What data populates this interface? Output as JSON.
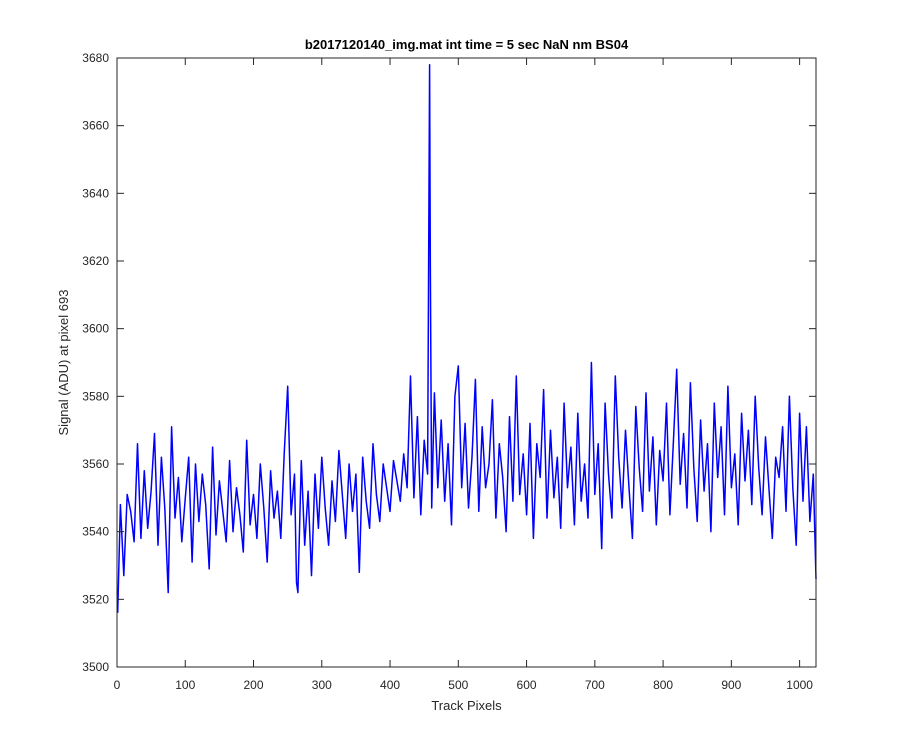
{
  "chart_data": {
    "type": "line",
    "title": "b2017120140_img.mat int time = 5 sec  NaN nm BS04",
    "xlabel": "Track Pixels",
    "ylabel": "Signal (ADU) at pixel 693",
    "xlim": [
      0,
      1024
    ],
    "ylim": [
      3500,
      3680
    ],
    "xticks": [
      0,
      100,
      200,
      300,
      400,
      500,
      600,
      700,
      800,
      900,
      1000
    ],
    "yticks": [
      3500,
      3520,
      3540,
      3560,
      3580,
      3600,
      3620,
      3640,
      3660,
      3680
    ],
    "grid": false,
    "series": [
      {
        "color": "#0000ff",
        "x": [
          1,
          5,
          10,
          15,
          20,
          25,
          30,
          35,
          40,
          45,
          50,
          55,
          60,
          65,
          70,
          75,
          80,
          85,
          90,
          95,
          100,
          105,
          110,
          115,
          120,
          125,
          130,
          135,
          140,
          145,
          150,
          155,
          160,
          165,
          170,
          175,
          180,
          185,
          190,
          195,
          200,
          205,
          210,
          215,
          220,
          225,
          230,
          235,
          240,
          245,
          250,
          255,
          260,
          263,
          265,
          270,
          275,
          280,
          285,
          290,
          295,
          300,
          305,
          310,
          315,
          320,
          325,
          330,
          335,
          340,
          345,
          350,
          355,
          360,
          365,
          370,
          375,
          380,
          385,
          390,
          395,
          400,
          405,
          410,
          415,
          420,
          425,
          430,
          435,
          440,
          445,
          450,
          455,
          458,
          459,
          461,
          465,
          470,
          475,
          480,
          485,
          490,
          495,
          500,
          505,
          510,
          515,
          520,
          525,
          530,
          535,
          540,
          545,
          550,
          555,
          560,
          565,
          570,
          575,
          580,
          585,
          590,
          595,
          600,
          605,
          610,
          615,
          620,
          625,
          630,
          635,
          640,
          645,
          650,
          655,
          660,
          665,
          670,
          675,
          680,
          685,
          690,
          695,
          700,
          705,
          710,
          715,
          720,
          725,
          730,
          735,
          740,
          745,
          750,
          755,
          760,
          765,
          770,
          775,
          780,
          785,
          790,
          795,
          800,
          805,
          810,
          815,
          820,
          825,
          830,
          835,
          840,
          845,
          850,
          855,
          860,
          865,
          870,
          875,
          880,
          885,
          890,
          895,
          900,
          905,
          910,
          915,
          920,
          925,
          930,
          935,
          940,
          945,
          950,
          955,
          960,
          965,
          970,
          975,
          980,
          985,
          990,
          995,
          1000,
          1005,
          1010,
          1015,
          1020,
          1024
        ],
        "y": [
          3516,
          3548,
          3527,
          3551,
          3546,
          3537,
          3566,
          3538,
          3558,
          3541,
          3552,
          3569,
          3536,
          3562,
          3547,
          3522,
          3571,
          3544,
          3556,
          3537,
          3550,
          3562,
          3531,
          3560,
          3543,
          3557,
          3548,
          3529,
          3565,
          3539,
          3555,
          3546,
          3537,
          3561,
          3540,
          3553,
          3545,
          3534,
          3567,
          3542,
          3551,
          3538,
          3560,
          3547,
          3531,
          3558,
          3544,
          3552,
          3538,
          3563,
          3583,
          3545,
          3557,
          3525,
          3522,
          3561,
          3536,
          3552,
          3527,
          3557,
          3541,
          3562,
          3547,
          3536,
          3555,
          3543,
          3564,
          3551,
          3538,
          3560,
          3546,
          3557,
          3528,
          3562,
          3549,
          3541,
          3566,
          3551,
          3543,
          3560,
          3553,
          3546,
          3561,
          3555,
          3549,
          3563,
          3553,
          3586,
          3550,
          3574,
          3545,
          3567,
          3557,
          3678,
          3620,
          3547,
          3581,
          3553,
          3573,
          3549,
          3566,
          3542,
          3580,
          3589,
          3553,
          3572,
          3547,
          3562,
          3585,
          3546,
          3571,
          3553,
          3560,
          3579,
          3544,
          3566,
          3556,
          3540,
          3574,
          3549,
          3586,
          3551,
          3563,
          3545,
          3572,
          3538,
          3566,
          3556,
          3582,
          3544,
          3570,
          3550,
          3562,
          3541,
          3578,
          3553,
          3565,
          3542,
          3575,
          3549,
          3560,
          3544,
          3590,
          3551,
          3566,
          3535,
          3578,
          3557,
          3544,
          3586,
          3562,
          3547,
          3570,
          3553,
          3538,
          3577,
          3559,
          3546,
          3581,
          3552,
          3568,
          3542,
          3564,
          3555,
          3578,
          3545,
          3566,
          3588,
          3554,
          3569,
          3547,
          3584,
          3559,
          3543,
          3573,
          3552,
          3566,
          3540,
          3578,
          3556,
          3571,
          3545,
          3583,
          3553,
          3563,
          3542,
          3575,
          3555,
          3570,
          3548,
          3580,
          3559,
          3545,
          3568,
          3553,
          3538,
          3562,
          3556,
          3571,
          3546,
          3580,
          3553,
          3536,
          3575,
          3549,
          3571,
          3543,
          3557,
          3526
        ]
      }
    ]
  }
}
